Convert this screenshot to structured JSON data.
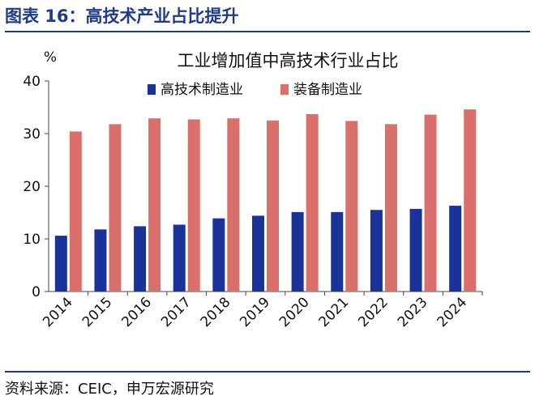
{
  "figure": {
    "title": "图表 16：高技术产业占比提升",
    "source": "资料来源：CEIC，申万宏源研究"
  },
  "chart_data": {
    "type": "bar",
    "title": "工业增加值中高技术行业占比",
    "ylabel": "%",
    "ylim": [
      0,
      40
    ],
    "yticks": [
      0,
      10,
      20,
      30,
      40
    ],
    "grid": false,
    "legend": "top-center",
    "categories": [
      "2014",
      "2015",
      "2016",
      "2017",
      "2018",
      "2019",
      "2020",
      "2021",
      "2022",
      "2023",
      "2024"
    ],
    "series": [
      {
        "name": "高技术制造业",
        "color": "#1a3399",
        "values": [
          10.6,
          11.8,
          12.4,
          12.7,
          13.9,
          14.4,
          15.1,
          15.1,
          15.5,
          15.7,
          16.3
        ]
      },
      {
        "name": "装备制造业",
        "color": "#d9706c",
        "values": [
          30.4,
          31.8,
          32.9,
          32.7,
          32.9,
          32.5,
          33.7,
          32.4,
          31.8,
          33.6,
          34.6
        ]
      }
    ]
  }
}
